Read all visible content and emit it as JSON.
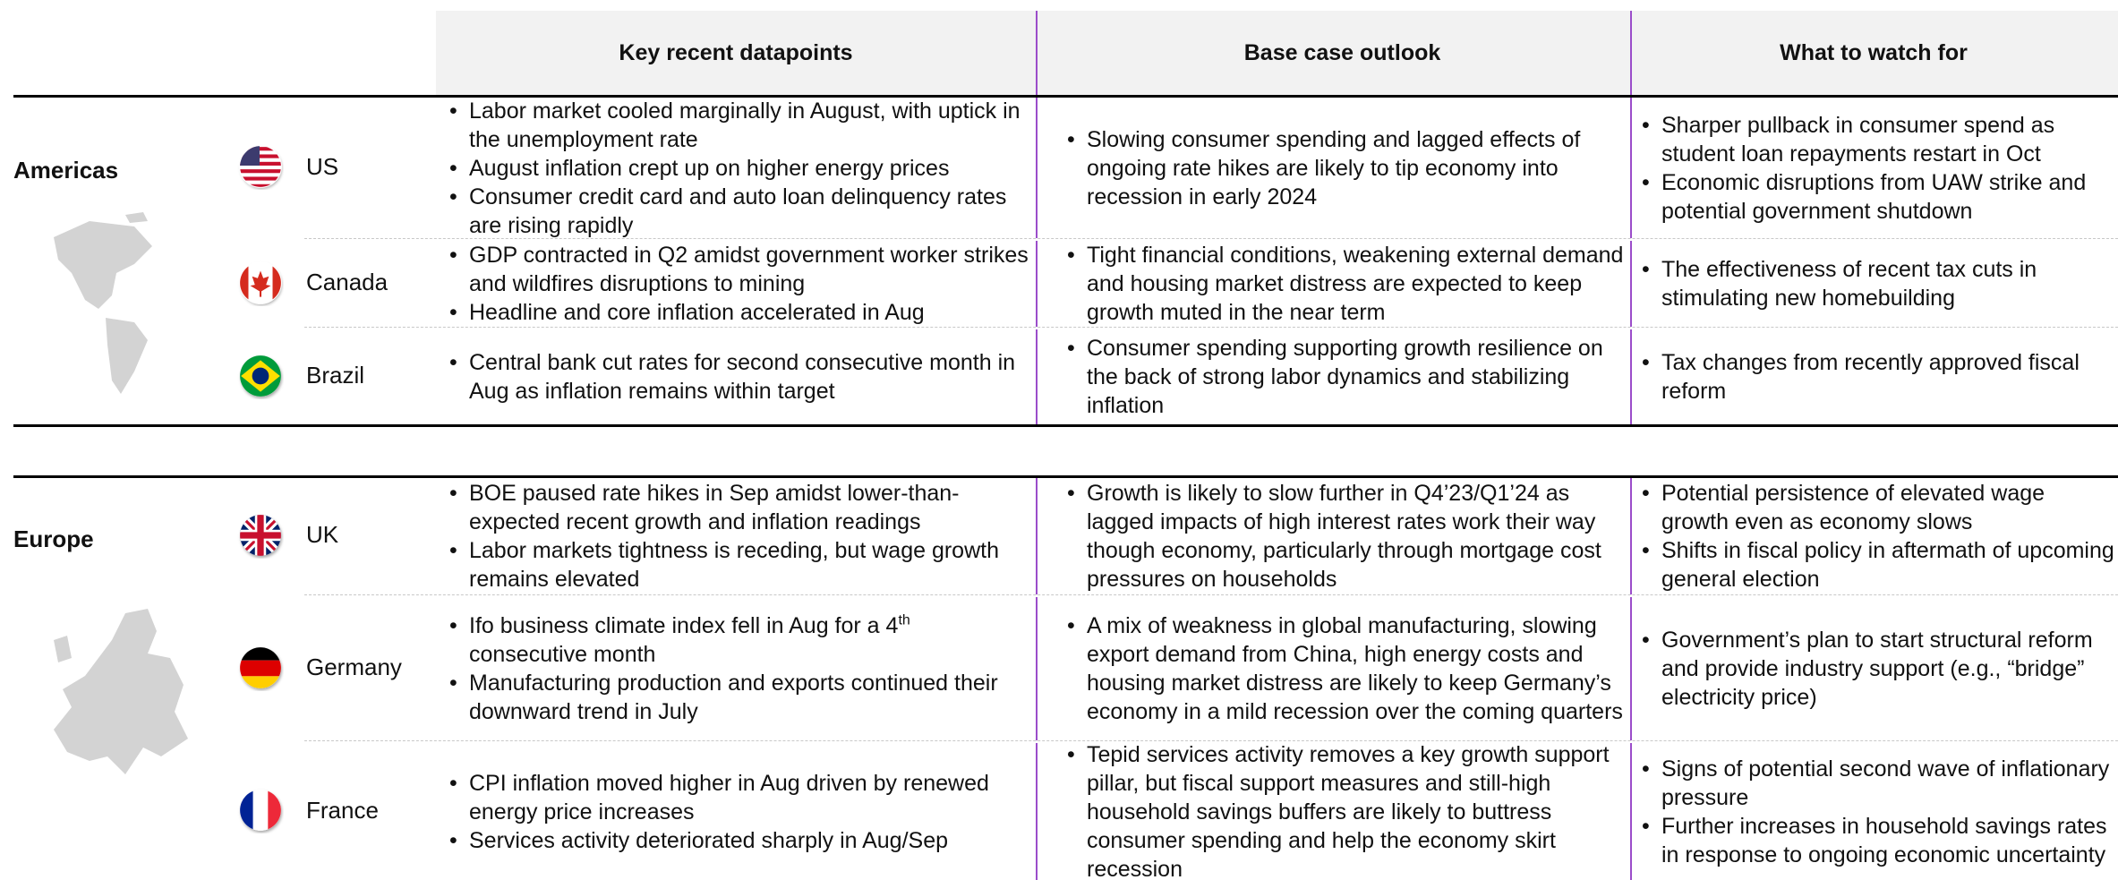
{
  "header": {
    "columns": [
      "Key recent datapoints",
      "Base case outlook",
      "What to watch for"
    ]
  },
  "regions": [
    {
      "name": "Americas",
      "countries": [
        {
          "name": "US",
          "datapoints": [
            "Labor market cooled marginally in August, with uptick in the unemployment rate",
            "August inflation crept up on higher energy prices",
            "Consumer credit card and auto loan delinquency rates are rising rapidly"
          ],
          "outlook": [
            "Slowing consumer spending and lagged effects of ongoing rate hikes are likely to tip economy into recession in early 2024"
          ],
          "watch": [
            "Sharper pullback in consumer spend as student loan repayments restart in Oct",
            "Economic disruptions from UAW strike and potential government shutdown"
          ]
        },
        {
          "name": "Canada",
          "datapoints": [
            "GDP contracted in Q2 amidst government worker strikes and wildfires disruptions to mining",
            "Headline and core inflation accelerated in Aug"
          ],
          "outlook": [
            "Tight financial conditions, weakening external demand and housing market distress are expected to keep growth muted in the near term"
          ],
          "watch": [
            "The effectiveness of recent tax cuts in stimulating new homebuilding"
          ]
        },
        {
          "name": "Brazil",
          "datapoints": [
            "Central bank cut rates for second consecutive month in Aug as inflation remains within target"
          ],
          "outlook": [
            "Consumer spending supporting growth resilience on the back of strong labor dynamics and stabilizing inflation"
          ],
          "watch": [
            "Tax changes from recently approved fiscal reform"
          ]
        }
      ]
    },
    {
      "name": "Europe",
      "countries": [
        {
          "name": "UK",
          "datapoints": [
            "BOE paused rate hikes in Sep amidst lower-than-expected recent growth and inflation readings",
            "Labor markets tightness is receding, but wage growth remains elevated"
          ],
          "outlook": [
            "Growth is likely to slow further in Q4’23/Q1’24 as lagged impacts of high interest rates work their way though economy, particularly through mortgage cost pressures on households"
          ],
          "watch": [
            "Potential persistence of elevated wage growth even as economy slows",
            "Shifts in fiscal policy in aftermath of upcoming general election"
          ]
        },
        {
          "name": "Germany",
          "datapoints": [
            {
              "before": "Ifo business climate index fell in Aug for a 4",
              "sup": "th",
              "after": " consecutive month"
            },
            "Manufacturing production and exports continued their downward trend in July"
          ],
          "outlook": [
            "A mix of weakness in global manufacturing, slowing export demand from China, high energy costs and housing market distress are likely to keep Germany’s economy in a mild recession over the coming quarters"
          ],
          "watch": [
            "Government’s plan to start structural reform and provide industry support (e.g., “bridge” electricity price)"
          ]
        },
        {
          "name": "France",
          "datapoints": [
            "CPI inflation moved higher in Aug driven by renewed energy price increases",
            "Services activity deteriorated sharply in Aug/Sep"
          ],
          "outlook": [
            "Tepid services activity removes a key growth support pillar, but fiscal support measures and still-high household savings buffers are likely to buttress consumer spending and help the economy skirt recession"
          ],
          "watch": [
            "Signs of potential second wave of inflationary pressure",
            "Further increases in household savings rates in response to ongoing economic uncertainty"
          ]
        }
      ]
    }
  ]
}
